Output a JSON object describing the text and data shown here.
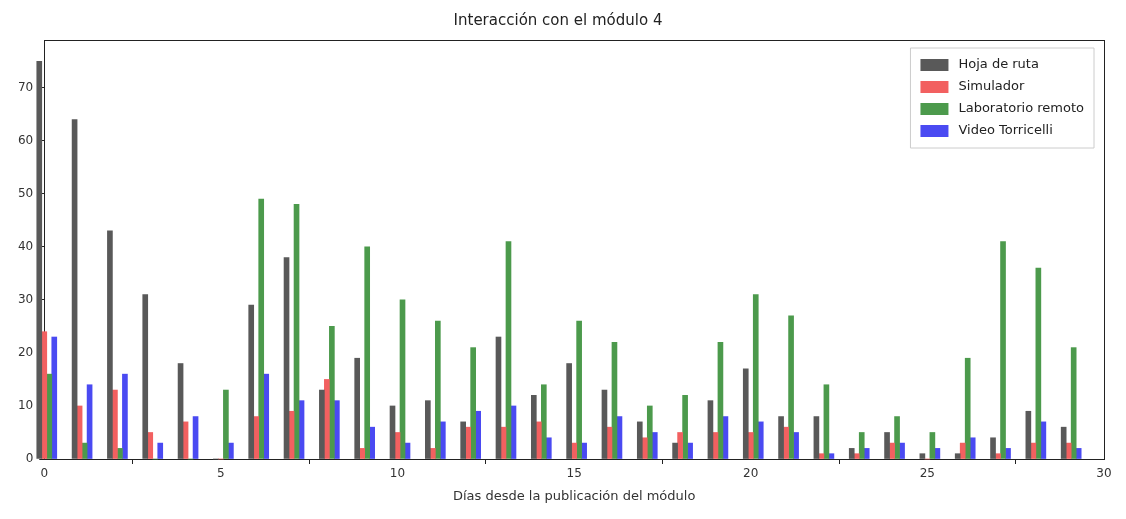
{
  "chart_data": {
    "type": "bar",
    "title": "Interacción con el módulo 4",
    "xlabel": "Días desde la publicación del módulo",
    "x": [
      0,
      1,
      2,
      3,
      4,
      5,
      6,
      7,
      8,
      9,
      10,
      11,
      12,
      13,
      14,
      15,
      16,
      17,
      18,
      19,
      20,
      21,
      22,
      23,
      24,
      25,
      26,
      27,
      28,
      29
    ],
    "series": [
      {
        "name": "Hoja de ruta",
        "color": "#595959",
        "values": [
          75,
          64,
          43,
          31,
          18,
          0,
          29,
          38,
          13,
          19,
          10,
          11,
          7,
          23,
          12,
          18,
          13,
          7,
          3,
          11,
          17,
          8,
          8,
          2,
          5,
          1,
          1,
          4,
          9,
          6
        ]
      },
      {
        "name": "Simulador",
        "color": "#f26060",
        "values": [
          24,
          10,
          13,
          5,
          7,
          0,
          8,
          9,
          15,
          2,
          5,
          2,
          6,
          6,
          7,
          3,
          6,
          4,
          5,
          5,
          5,
          6,
          1,
          1,
          3,
          0,
          3,
          1,
          3,
          3
        ]
      },
      {
        "name": "Laboratorio remoto",
        "color": "#4c9a4c",
        "values": [
          16,
          3,
          2,
          0,
          0,
          13,
          49,
          48,
          25,
          40,
          30,
          26,
          21,
          41,
          14,
          26,
          22,
          10,
          12,
          22,
          31,
          27,
          14,
          5,
          8,
          5,
          19,
          41,
          36,
          21
        ]
      },
      {
        "name": "Video Torricelli",
        "color": "#4a4af2",
        "values": [
          23,
          14,
          16,
          3,
          8,
          3,
          16,
          11,
          11,
          6,
          3,
          7,
          9,
          10,
          4,
          3,
          8,
          5,
          3,
          8,
          7,
          5,
          1,
          2,
          3,
          2,
          4,
          2,
          7,
          2
        ]
      }
    ],
    "xlim": [
      0,
      30
    ],
    "xticks": [
      0,
      5,
      10,
      15,
      20,
      25,
      30
    ],
    "ylim": [
      0,
      79
    ],
    "yticks": [
      0,
      10,
      20,
      30,
      40,
      50,
      60,
      70
    ],
    "grid": false,
    "legend": "top right"
  }
}
